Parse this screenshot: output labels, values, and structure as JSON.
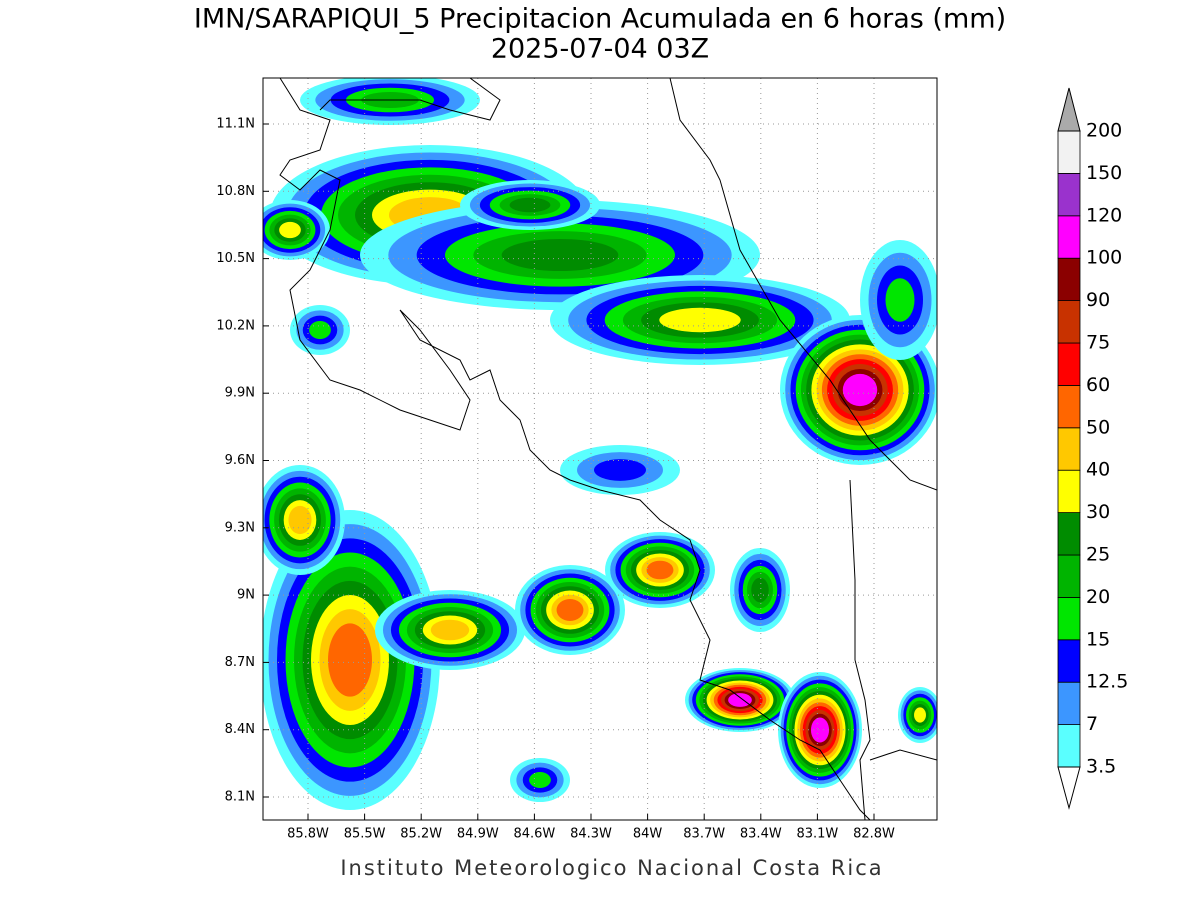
{
  "header": {
    "title": "IMN/SARAPIQUI_5 Precipitacion Acumulada en 6 horas (mm)",
    "subtitle": "2025-07-04 03Z"
  },
  "map": {
    "lon_labels": [
      "85.8W",
      "85.5W",
      "85.2W",
      "84.9W",
      "84.6W",
      "84.3W",
      "84W",
      "83.7W",
      "83.4W",
      "83.1W",
      "82.8W"
    ],
    "lat_labels": [
      "11.1N",
      "10.8N",
      "10.5N",
      "10.2N",
      "9.9N",
      "9.6N",
      "9.3N",
      "9N",
      "8.7N",
      "8.4N",
      "8.1N"
    ]
  },
  "legend": {
    "levels": [
      "3.5",
      "7",
      "12.5",
      "15",
      "20",
      "25",
      "30",
      "40",
      "50",
      "60",
      "75",
      "90",
      "100",
      "120",
      "150",
      "200"
    ],
    "colors": [
      "#5affff",
      "#3c96ff",
      "#0000ff",
      "#00e600",
      "#00b400",
      "#008c00",
      "#ffff00",
      "#ffc800",
      "#ff6600",
      "#ff0000",
      "#c83200",
      "#8b0000",
      "#ff00ff",
      "#9a32cd",
      "#f2f2f2"
    ],
    "over_color": "#aaaaaa",
    "under_color": "#ffffff"
  },
  "footer": "Instituto Meteorologico Nacional Costa Rica"
}
